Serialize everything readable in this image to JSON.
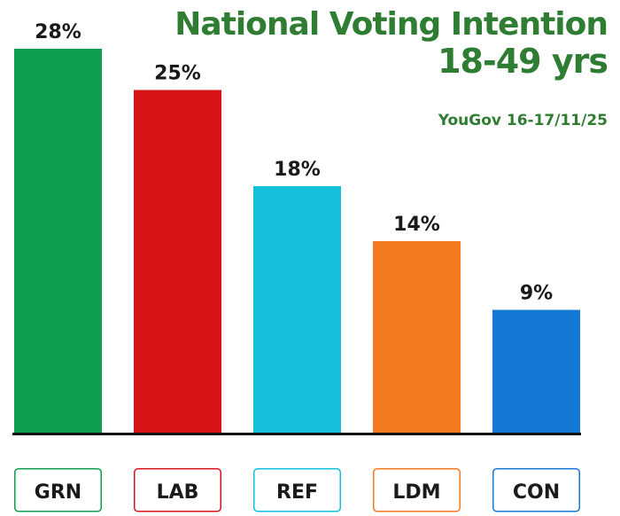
{
  "title": {
    "line1": "National Voting Intention",
    "line2": "18-49 yrs"
  },
  "source": "YouGov 16-17/11/25",
  "chart_data": {
    "type": "bar",
    "categories": [
      "GRN",
      "LAB",
      "REF",
      "LDM",
      "CON"
    ],
    "values": [
      28,
      25,
      18,
      14,
      9
    ],
    "value_labels": [
      "28%",
      "25%",
      "18%",
      "14%",
      "9%"
    ],
    "colors": [
      "#0f9d4f",
      "#d81418",
      "#14bfd9",
      "#f47a20",
      "#1479d4"
    ],
    "title": "National Voting Intention 18-49 yrs",
    "xlabel": "",
    "ylabel": "",
    "ylim": [
      0,
      28
    ],
    "grid": false
  }
}
